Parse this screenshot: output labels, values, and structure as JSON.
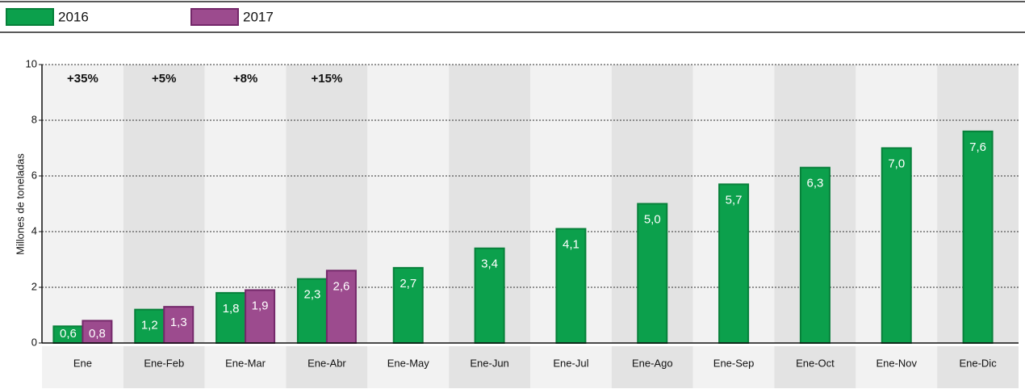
{
  "chart_data": {
    "type": "bar",
    "y_label": "Millones de toneladas",
    "categories": [
      "Ene",
      "Ene-Feb",
      "Ene-Mar",
      "Ene-Abr",
      "Ene-May",
      "Ene-Jun",
      "Ene-Jul",
      "Ene-Ago",
      "Ene-Sep",
      "Ene-Oct",
      "Ene-Nov",
      "Ene-Dic"
    ],
    "series": [
      {
        "name": "2016",
        "color": "#0ca04c",
        "values": [
          0.6,
          1.2,
          1.8,
          2.3,
          2.7,
          3.4,
          4.1,
          5.0,
          5.7,
          6.3,
          7.0,
          7.6
        ],
        "value_labels": [
          "0,6",
          "1,2",
          "1,8",
          "2,3",
          "2,7",
          "3,4",
          "4,1",
          "5,0",
          "5,7",
          "6,3",
          "7,0",
          "7,6"
        ]
      },
      {
        "name": "2017",
        "color": "#9c4b8e",
        "values": [
          0.8,
          1.3,
          1.9,
          2.6,
          null,
          null,
          null,
          null,
          null,
          null,
          null,
          null
        ],
        "value_labels": [
          "0,8",
          "1,3",
          "1,9",
          "2,6",
          null,
          null,
          null,
          null,
          null,
          null,
          null,
          null
        ]
      }
    ],
    "annotations": [
      "+35%",
      "+5%",
      "+8%",
      "+15%"
    ],
    "ylim": [
      0,
      10
    ],
    "yticks": [
      0,
      2,
      4,
      6,
      8,
      10
    ],
    "grid": true
  }
}
